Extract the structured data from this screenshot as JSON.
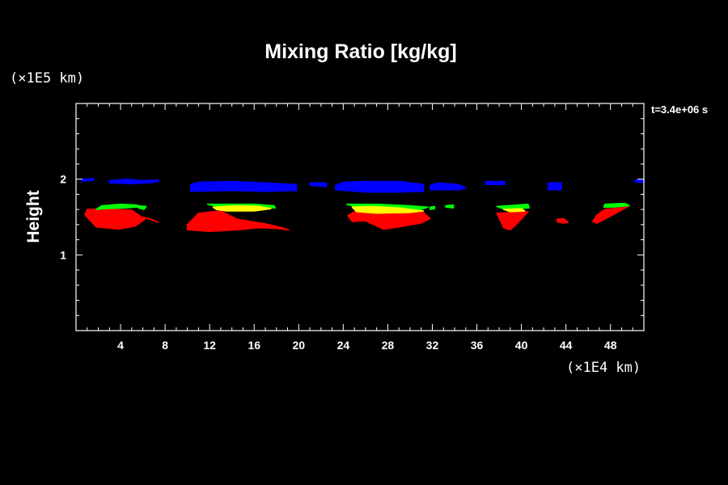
{
  "chart_data": {
    "type": "heatmap",
    "title": "Mixing Ratio [kg/kg]",
    "ylabel": "Height",
    "x_unit_label": "(×1E4 km)",
    "y_unit_label": "(×1E5 km)",
    "time_label": "t=3.4e+06 s",
    "xlim": [
      0,
      51
    ],
    "ylim": [
      0,
      3
    ],
    "x_ticks": [
      4,
      8,
      12,
      16,
      20,
      24,
      28,
      32,
      36,
      40,
      44,
      48
    ],
    "x_tick_labels": [
      "4",
      "8",
      "12",
      "16",
      "20",
      "24",
      "28",
      "32",
      "36",
      "40",
      "44",
      "48"
    ],
    "y_ticks": [
      1,
      2
    ],
    "y_tick_labels": [
      "1",
      "2"
    ],
    "grid": false,
    "colors": {
      "background": "#000000",
      "axes": "#ffffff",
      "blue": "#0000ff",
      "red": "#ff0000",
      "green": "#00ff00",
      "yellow": "#ffff00"
    },
    "regions": [
      {
        "color": "blue",
        "points": [
          [
            0.5,
            1.97
          ],
          [
            1.6,
            1.99
          ],
          [
            1.6,
            2.01
          ],
          [
            0.5,
            2.0
          ]
        ]
      },
      {
        "color": "blue",
        "points": [
          [
            3.0,
            1.95
          ],
          [
            5.0,
            1.94
          ],
          [
            6.5,
            1.95
          ],
          [
            7.4,
            1.97
          ],
          [
            7.4,
            1.99
          ],
          [
            6.0,
            1.98
          ],
          [
            4.5,
            2.0
          ],
          [
            3.0,
            1.98
          ]
        ]
      },
      {
        "color": "blue",
        "points": [
          [
            10.3,
            1.84
          ],
          [
            14.0,
            1.85
          ],
          [
            17.0,
            1.84
          ],
          [
            19.8,
            1.85
          ],
          [
            19.8,
            1.93
          ],
          [
            17.0,
            1.95
          ],
          [
            14.0,
            1.97
          ],
          [
            11.0,
            1.96
          ],
          [
            10.3,
            1.93
          ]
        ]
      },
      {
        "color": "blue",
        "points": [
          [
            21.0,
            1.92
          ],
          [
            22.5,
            1.9
          ],
          [
            22.5,
            1.95
          ],
          [
            21.0,
            1.95
          ]
        ]
      },
      {
        "color": "blue",
        "points": [
          [
            23.3,
            1.86
          ],
          [
            26.0,
            1.83
          ],
          [
            29.0,
            1.83
          ],
          [
            31.2,
            1.84
          ],
          [
            31.2,
            1.93
          ],
          [
            29.0,
            1.97
          ],
          [
            26.0,
            1.97
          ],
          [
            24.0,
            1.96
          ],
          [
            23.3,
            1.92
          ]
        ]
      },
      {
        "color": "blue",
        "points": [
          [
            31.8,
            1.86
          ],
          [
            34.5,
            1.86
          ],
          [
            35.0,
            1.89
          ],
          [
            34.3,
            1.93
          ],
          [
            32.5,
            1.95
          ],
          [
            31.8,
            1.92
          ]
        ]
      },
      {
        "color": "blue",
        "points": [
          [
            36.8,
            1.93
          ],
          [
            38.5,
            1.93
          ],
          [
            38.5,
            1.97
          ],
          [
            36.8,
            1.97
          ]
        ]
      },
      {
        "color": "blue",
        "points": [
          [
            42.4,
            1.86
          ],
          [
            43.6,
            1.86
          ],
          [
            43.6,
            1.95
          ],
          [
            42.4,
            1.95
          ]
        ]
      },
      {
        "color": "blue",
        "points": [
          [
            50.2,
            1.96
          ],
          [
            51.0,
            1.96
          ],
          [
            51.0,
            1.99
          ],
          [
            50.2,
            1.99
          ]
        ]
      },
      {
        "color": "red",
        "points": [
          [
            0.8,
            1.53
          ],
          [
            1.8,
            1.37
          ],
          [
            3.8,
            1.34
          ],
          [
            5.3,
            1.38
          ],
          [
            6.2,
            1.47
          ],
          [
            5.0,
            1.59
          ],
          [
            2.5,
            1.61
          ],
          [
            1.0,
            1.6
          ]
        ]
      },
      {
        "color": "red",
        "points": [
          [
            6.0,
            1.5
          ],
          [
            6.8,
            1.47
          ],
          [
            7.4,
            1.43
          ],
          [
            6.5,
            1.48
          ]
        ]
      },
      {
        "color": "red",
        "points": [
          [
            10.0,
            1.33
          ],
          [
            12.0,
            1.31
          ],
          [
            14.5,
            1.33
          ],
          [
            16.5,
            1.36
          ],
          [
            18.0,
            1.35
          ],
          [
            19.1,
            1.33
          ],
          [
            18.5,
            1.36
          ],
          [
            17.0,
            1.41
          ],
          [
            14.5,
            1.47
          ],
          [
            13.0,
            1.58
          ],
          [
            11.0,
            1.55
          ],
          [
            10.0,
            1.4
          ]
        ]
      },
      {
        "color": "red",
        "points": [
          [
            24.4,
            1.52
          ],
          [
            24.8,
            1.44
          ],
          [
            26.0,
            1.45
          ],
          [
            27.6,
            1.34
          ],
          [
            29.0,
            1.37
          ],
          [
            31.0,
            1.42
          ],
          [
            31.8,
            1.48
          ],
          [
            31.2,
            1.56
          ],
          [
            28.0,
            1.58
          ],
          [
            25.0,
            1.57
          ]
        ]
      },
      {
        "color": "red",
        "points": [
          [
            37.8,
            1.55
          ],
          [
            38.4,
            1.36
          ],
          [
            39.0,
            1.33
          ],
          [
            39.6,
            1.41
          ],
          [
            40.6,
            1.57
          ]
        ]
      },
      {
        "color": "red",
        "points": [
          [
            43.2,
            1.44
          ],
          [
            43.7,
            1.42
          ],
          [
            44.2,
            1.43
          ],
          [
            43.8,
            1.48
          ],
          [
            43.2,
            1.47
          ]
        ]
      },
      {
        "color": "red",
        "points": [
          [
            46.4,
            1.44
          ],
          [
            46.8,
            1.53
          ],
          [
            47.5,
            1.6
          ],
          [
            48.8,
            1.62
          ],
          [
            49.6,
            1.64
          ],
          [
            48.5,
            1.55
          ],
          [
            47.6,
            1.48
          ],
          [
            46.8,
            1.42
          ]
        ]
      },
      {
        "color": "green",
        "points": [
          [
            1.8,
            1.6
          ],
          [
            2.3,
            1.65
          ],
          [
            4.0,
            1.67
          ],
          [
            5.3,
            1.66
          ],
          [
            6.0,
            1.64
          ],
          [
            4.5,
            1.62
          ],
          [
            2.5,
            1.61
          ]
        ]
      },
      {
        "color": "green",
        "points": [
          [
            5.5,
            1.65
          ],
          [
            6.3,
            1.64
          ],
          [
            6.1,
            1.6
          ],
          [
            5.6,
            1.62
          ]
        ]
      },
      {
        "color": "green",
        "points": [
          [
            11.8,
            1.67
          ],
          [
            13.5,
            1.67
          ],
          [
            16.0,
            1.67
          ],
          [
            17.8,
            1.65
          ],
          [
            17.9,
            1.62
          ],
          [
            16.0,
            1.63
          ],
          [
            13.0,
            1.63
          ]
        ]
      },
      {
        "color": "green",
        "points": [
          [
            24.3,
            1.67
          ],
          [
            27.0,
            1.67
          ],
          [
            30.0,
            1.65
          ],
          [
            31.6,
            1.63
          ],
          [
            31.0,
            1.6
          ],
          [
            28.0,
            1.62
          ],
          [
            25.5,
            1.62
          ]
        ]
      },
      {
        "color": "green",
        "points": [
          [
            31.8,
            1.63
          ],
          [
            32.2,
            1.64
          ],
          [
            32.2,
            1.61
          ],
          [
            31.8,
            1.6
          ]
        ]
      },
      {
        "color": "green",
        "points": [
          [
            33.2,
            1.65
          ],
          [
            33.9,
            1.66
          ],
          [
            33.9,
            1.62
          ],
          [
            33.2,
            1.63
          ]
        ]
      },
      {
        "color": "green",
        "points": [
          [
            37.8,
            1.64
          ],
          [
            40.6,
            1.67
          ],
          [
            40.7,
            1.62
          ],
          [
            38.5,
            1.6
          ]
        ]
      },
      {
        "color": "green",
        "points": [
          [
            47.5,
            1.67
          ],
          [
            49.3,
            1.68
          ],
          [
            49.7,
            1.65
          ],
          [
            48.2,
            1.63
          ],
          [
            47.4,
            1.63
          ]
        ]
      },
      {
        "color": "yellow",
        "points": [
          [
            12.3,
            1.63
          ],
          [
            14.5,
            1.65
          ],
          [
            16.5,
            1.64
          ],
          [
            17.5,
            1.61
          ],
          [
            16.0,
            1.58
          ],
          [
            13.5,
            1.58
          ],
          [
            12.6,
            1.6
          ]
        ]
      },
      {
        "color": "yellow",
        "points": [
          [
            24.8,
            1.63
          ],
          [
            26.5,
            1.64
          ],
          [
            29.0,
            1.62
          ],
          [
            31.2,
            1.58
          ],
          [
            30.0,
            1.56
          ],
          [
            27.0,
            1.55
          ],
          [
            25.2,
            1.57
          ]
        ]
      },
      {
        "color": "yellow",
        "points": [
          [
            38.4,
            1.6
          ],
          [
            40.0,
            1.61
          ],
          [
            40.3,
            1.58
          ],
          [
            39.0,
            1.57
          ]
        ]
      }
    ]
  }
}
